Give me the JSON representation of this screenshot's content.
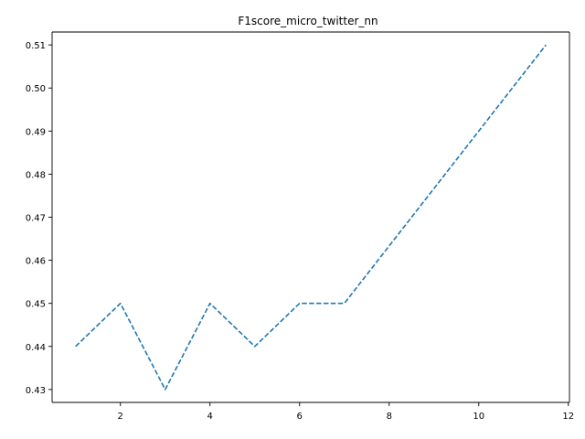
{
  "chart_data": {
    "type": "line",
    "title": "F1score_micro_twitter_nn",
    "xlabel": "",
    "ylabel": "",
    "x": [
      1,
      2,
      3,
      4,
      5,
      6,
      7,
      11.5
    ],
    "series": [
      {
        "values": [
          0.44,
          0.45,
          0.43,
          0.45,
          0.44,
          0.45,
          0.45,
          0.51
        ],
        "color": "#1f77b4",
        "style": "dashed"
      }
    ],
    "xlim": [
      0.475,
      12.025
    ],
    "ylim": [
      0.427,
      0.513
    ],
    "xticks": [
      2,
      4,
      6,
      8,
      10,
      12
    ],
    "yticks": [
      0.43,
      0.44,
      0.45,
      0.46,
      0.47,
      0.48,
      0.49,
      0.5,
      0.51
    ],
    "xtick_labels": [
      "2",
      "4",
      "6",
      "8",
      "10",
      "12"
    ],
    "ytick_labels": [
      "0.43",
      "0.44",
      "0.45",
      "0.46",
      "0.47",
      "0.48",
      "0.49",
      "0.50",
      "0.51"
    ],
    "grid": false,
    "legend": "none"
  }
}
